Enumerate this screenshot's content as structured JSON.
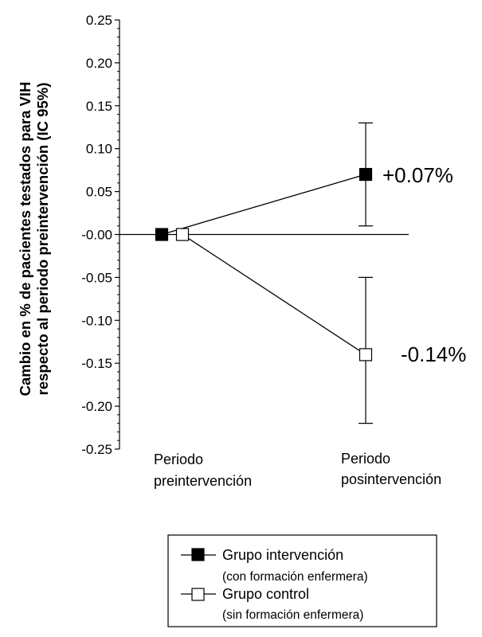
{
  "chart_data": {
    "type": "line",
    "ylabel_line1": "Cambio en % de pacientes testados para VIH",
    "ylabel_line2": "respecto al periodo preintervención (IC 95%)",
    "ylim": [
      -0.25,
      0.25
    ],
    "yticks": [
      {
        "value": 0.25,
        "label": "0.25"
      },
      {
        "value": 0.2,
        "label": "0.20"
      },
      {
        "value": 0.15,
        "label": "0.15"
      },
      {
        "value": 0.1,
        "label": "0.10"
      },
      {
        "value": 0.05,
        "label": "0.05"
      },
      {
        "value": 0.0,
        "label": "-0.00"
      },
      {
        "value": -0.05,
        "label": "-0.05"
      },
      {
        "value": -0.1,
        "label": "-0.10"
      },
      {
        "value": -0.15,
        "label": "-0.15"
      },
      {
        "value": -0.2,
        "label": "-0.20"
      },
      {
        "value": -0.25,
        "label": "-0.25"
      }
    ],
    "categories": [
      {
        "line1": "Periodo",
        "line2": "preintervención"
      },
      {
        "line1": "Periodo",
        "line2": "posintervención"
      }
    ],
    "series": [
      {
        "name": "Grupo intervención",
        "note": "(con formación enfermera)",
        "marker": "filled-square",
        "values": [
          0.0,
          0.07
        ],
        "ci_lower": [
          null,
          0.01
        ],
        "ci_upper": [
          null,
          0.13
        ],
        "end_label": "+0.07%"
      },
      {
        "name": "Grupo control",
        "note": "(sin formación enfermera)",
        "marker": "open-square",
        "values": [
          0.0,
          -0.14
        ],
        "ci_lower": [
          null,
          -0.22
        ],
        "ci_upper": [
          null,
          -0.05
        ],
        "end_label": "-0.14%"
      }
    ],
    "grid": false,
    "legend_position": "bottom-right",
    "colors": {
      "line": "#000000",
      "filled_marker": "#000000",
      "open_marker": "#ffffff"
    }
  }
}
